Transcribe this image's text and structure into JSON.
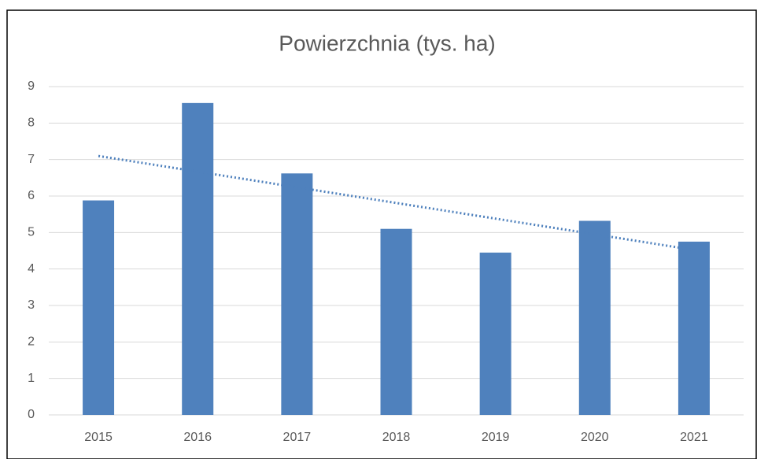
{
  "chart_data": {
    "type": "bar",
    "title": "Powierzchnia (tys. ha)",
    "categories": [
      "2015",
      "2016",
      "2017",
      "2018",
      "2019",
      "2020",
      "2021"
    ],
    "values": [
      5.88,
      8.55,
      6.62,
      5.1,
      4.45,
      5.32,
      4.75
    ],
    "color": "#4f81bd",
    "ylim": [
      0,
      9
    ],
    "yticks": [
      0,
      1,
      2,
      3,
      4,
      5,
      6,
      7,
      8,
      9
    ],
    "grid": true,
    "trendline": true
  }
}
